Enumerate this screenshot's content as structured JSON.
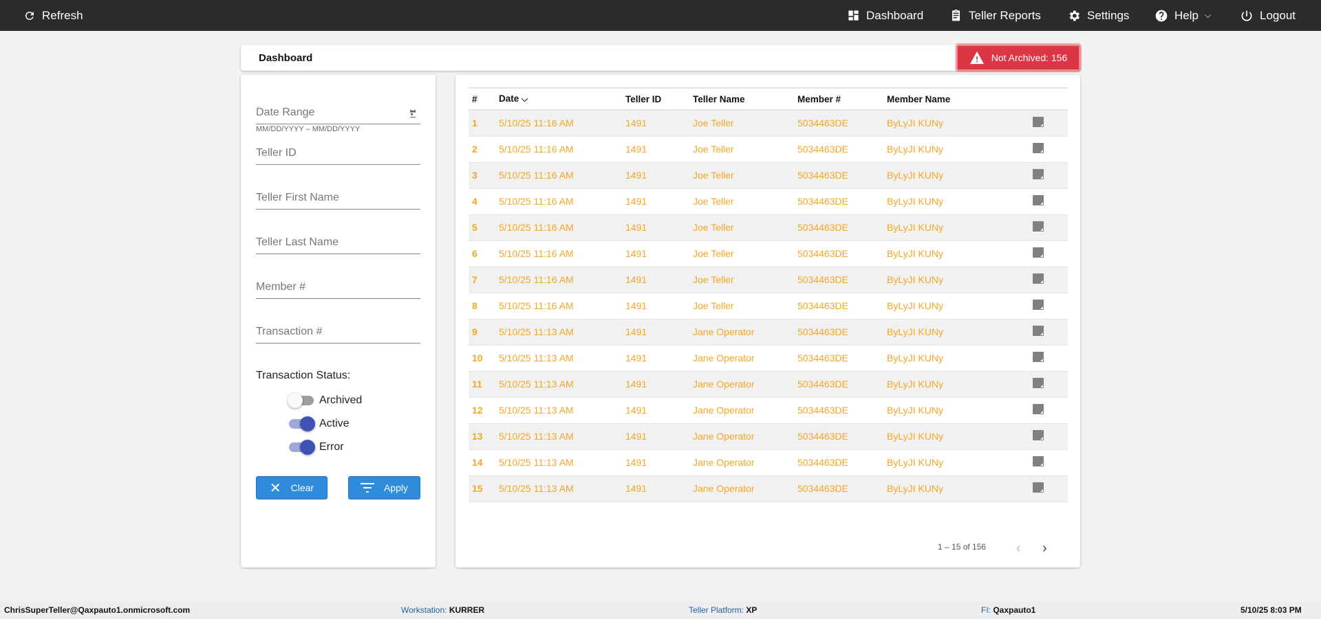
{
  "topbar": {
    "refresh": "Refresh",
    "dashboard": "Dashboard",
    "teller_reports": "Teller Reports",
    "settings": "Settings",
    "help": "Help",
    "logout": "Logout"
  },
  "header": {
    "title": "Dashboard",
    "badge": "Not Archived: 156",
    "badge_color": "#dc3545"
  },
  "filters": {
    "date_range": "Date Range",
    "date_hint": "MM/DD/YYYY – MM/DD/YYYY",
    "teller_id": "Teller ID",
    "teller_first_name": "Teller First Name",
    "teller_last_name": "Teller Last Name",
    "member_num": "Member #",
    "transaction_num": "Transaction #",
    "status_label": "Transaction Status:",
    "toggles": [
      {
        "label": "Archived",
        "on": false
      },
      {
        "label": "Active",
        "on": true
      },
      {
        "label": "Error",
        "on": true
      }
    ],
    "clear": "Clear",
    "apply": "Apply"
  },
  "table": {
    "columns": [
      "#",
      "Date",
      "Teller ID",
      "Teller Name",
      "Member #",
      "Member Name"
    ],
    "rows": [
      [
        "1",
        "5/10/25 11:16 AM",
        "1491",
        "Joe Teller",
        "5034463DE",
        "ByLyJI KUNy"
      ],
      [
        "2",
        "5/10/25 11:16 AM",
        "1491",
        "Joe Teller",
        "5034463DE",
        "ByLyJI KUNy"
      ],
      [
        "3",
        "5/10/25 11:16 AM",
        "1491",
        "Joe Teller",
        "5034463DE",
        "ByLyJI KUNy"
      ],
      [
        "4",
        "5/10/25 11:16 AM",
        "1491",
        "Joe Teller",
        "5034463DE",
        "ByLyJI KUNy"
      ],
      [
        "5",
        "5/10/25 11:16 AM",
        "1491",
        "Joe Teller",
        "5034463DE",
        "ByLyJI KUNy"
      ],
      [
        "6",
        "5/10/25 11:16 AM",
        "1491",
        "Joe Teller",
        "5034463DE",
        "ByLyJI KUNy"
      ],
      [
        "7",
        "5/10/25 11:16 AM",
        "1491",
        "Joe Teller",
        "5034463DE",
        "ByLyJI KUNy"
      ],
      [
        "8",
        "5/10/25 11:16 AM",
        "1491",
        "Joe Teller",
        "5034463DE",
        "ByLyJI KUNy"
      ],
      [
        "9",
        "5/10/25 11:13 AM",
        "1491",
        "Jane Operator",
        "5034463DE",
        "ByLyJI KUNy"
      ],
      [
        "10",
        "5/10/25 11:13 AM",
        "1491",
        "Jane Operator",
        "5034463DE",
        "ByLyJI KUNy"
      ],
      [
        "11",
        "5/10/25 11:13 AM",
        "1491",
        "Jane Operator",
        "5034463DE",
        "ByLyJI KUNy"
      ],
      [
        "12",
        "5/10/25 11:13 AM",
        "1491",
        "Jane Operator",
        "5034463DE",
        "ByLyJI KUNy"
      ],
      [
        "13",
        "5/10/25 11:13 AM",
        "1491",
        "Jane Operator",
        "5034463DE",
        "ByLyJI KUNy"
      ],
      [
        "14",
        "5/10/25 11:13 AM",
        "1491",
        "Jane Operator",
        "5034463DE",
        "ByLyJI KUNy"
      ],
      [
        "15",
        "5/10/25 11:13 AM",
        "1491",
        "Jane Operator",
        "5034463DE",
        "ByLyJI KUNy"
      ]
    ],
    "pagination": "1 – 15 of 156"
  },
  "footer": {
    "user": "ChrisSuperTeller@Qaxpauto1.onmicrosoft.com",
    "workstation_label": "Workstation:",
    "workstation": "KURRER",
    "platform_label": "Teller Platform:",
    "platform": "XP",
    "fi_label": "FI:",
    "fi": "Qaxpauto1",
    "datetime": "5/10/25 8:03 PM"
  },
  "colors": {
    "accent_orange": "#f5a623",
    "button_blue": "#2f8bdc",
    "toggle_on": "#3f51b5"
  }
}
